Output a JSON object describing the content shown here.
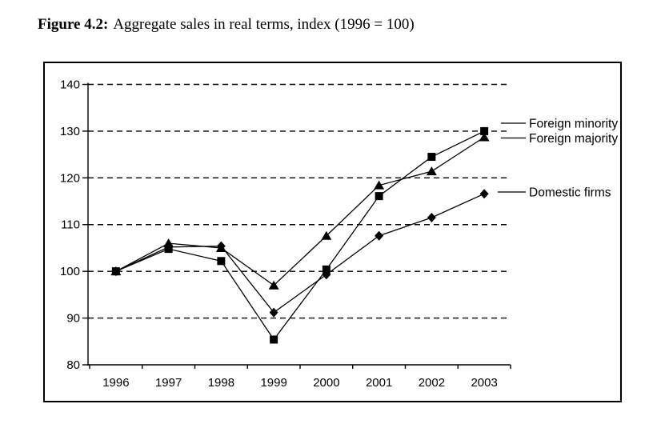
{
  "title": {
    "label": "Figure 4.2:",
    "caption": "Aggregate sales in real terms, index (1996 = 100)"
  },
  "chart_data": {
    "type": "line",
    "title": "Figure 4.2: Aggregate sales in real terms, index (1996 = 100)",
    "categories": [
      "1996",
      "1997",
      "1998",
      "1999",
      "2000",
      "2001",
      "2002",
      "2003"
    ],
    "series": [
      {
        "name": "Foreign minority",
        "marker": "square",
        "values": [
          100,
          104.8,
          102.2,
          85.4,
          100.4,
          116.1,
          124.5,
          130.0
        ]
      },
      {
        "name": "Foreign majority",
        "marker": "triangle",
        "values": [
          100,
          106.0,
          105.0,
          97.0,
          107.6,
          118.4,
          121.4,
          128.7
        ]
      },
      {
        "name": "Domestic firms",
        "marker": "diamond",
        "values": [
          100,
          105.2,
          105.4,
          91.2,
          99.3,
          107.6,
          111.5,
          116.6
        ]
      }
    ],
    "ylim": [
      80,
      140
    ],
    "yticks": [
      80,
      90,
      100,
      110,
      120,
      130,
      140
    ],
    "xlabel": "",
    "ylabel": "",
    "grid": "horizontal-dashed",
    "legend_position": "right-callouts",
    "line_color": "#000000",
    "marker_color": "#000000",
    "background": "#ffffff"
  }
}
